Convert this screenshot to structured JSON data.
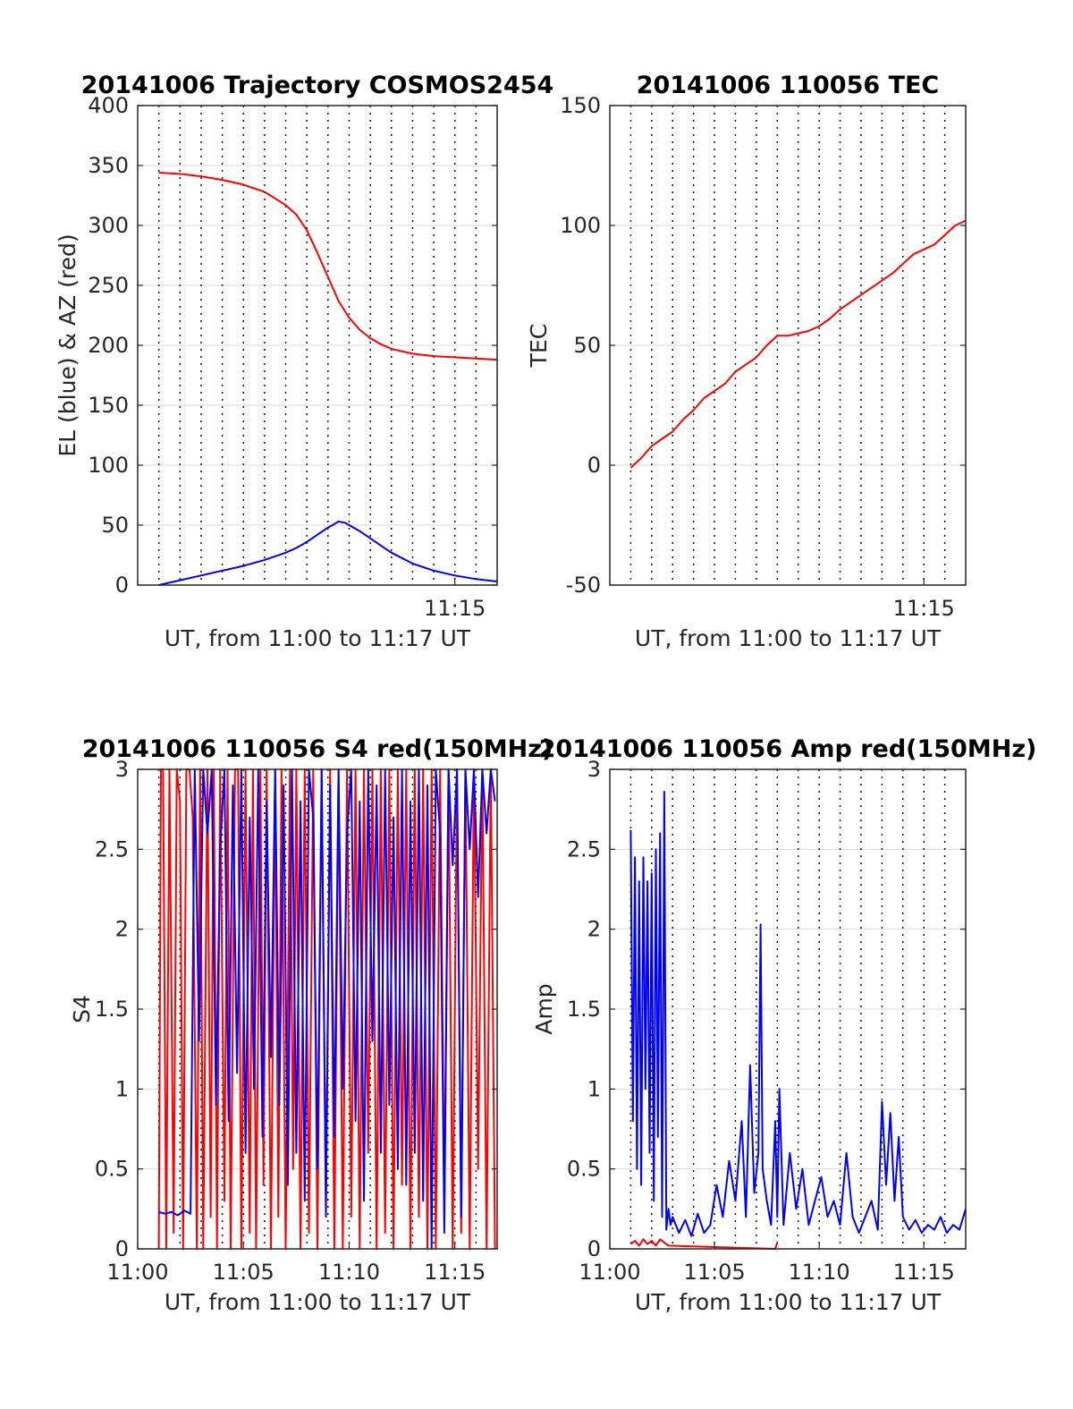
{
  "colors": {
    "red": "#ff0000",
    "blue": "#0000ff",
    "axis": "#262626",
    "grid": "#d9d9d9"
  },
  "chart_data": [
    {
      "type": "line",
      "title": "20141006 Trajectory COSMOS2454",
      "xlabel": "UT, from 11:00 to 11:17 UT",
      "ylabel": "EL (blue) & AZ (red)",
      "xlim": [
        0.0,
        17.0
      ],
      "ylim": [
        0,
        400
      ],
      "yticks": [
        0,
        50,
        100,
        150,
        200,
        250,
        300,
        350,
        400
      ],
      "ytick_labels": [
        "0",
        "50",
        "100",
        "150",
        "200",
        "250",
        "300",
        "350",
        "400"
      ],
      "xticks": [
        15
      ],
      "xtick_labels": [
        "11:15"
      ],
      "grid": "vertical dotted, horizontal solid",
      "series": [
        {
          "color": "red",
          "x": [
            1.0,
            2.0,
            3.0,
            4.0,
            5.0,
            6.0,
            7.0,
            7.5,
            8.0,
            8.5,
            9.0,
            9.5,
            10.0,
            10.5,
            11.0,
            11.5,
            12.0,
            13.0,
            14.0,
            15.0,
            16.0,
            17.0
          ],
          "values": [
            344,
            343,
            341,
            338,
            334,
            328,
            317,
            309,
            296,
            277,
            257,
            237,
            223,
            213,
            206,
            201,
            197,
            193,
            191,
            190,
            189,
            188
          ]
        },
        {
          "color": "blue",
          "x": [
            1.0,
            2.0,
            3.0,
            4.0,
            5.0,
            6.0,
            7.0,
            7.5,
            8.0,
            8.5,
            9.0,
            9.3,
            9.5,
            9.8,
            10.0,
            10.5,
            11.0,
            11.5,
            12.0,
            13.0,
            14.0,
            15.0,
            16.0,
            17.0
          ],
          "values": [
            0,
            4,
            8,
            12,
            16,
            21,
            27,
            31,
            36,
            42,
            48,
            51,
            53,
            52,
            50,
            45,
            39,
            33,
            27,
            18,
            12,
            8,
            5,
            3
          ]
        }
      ]
    },
    {
      "type": "line",
      "title": "20141006 110056 TEC",
      "xlabel": "UT, from 11:00 to 11:17 UT",
      "ylabel": "TEC",
      "xlim": [
        0.0,
        17.0
      ],
      "ylim": [
        -50,
        150
      ],
      "yticks": [
        -50,
        0,
        50,
        100,
        150
      ],
      "ytick_labels": [
        "-50",
        "0",
        "50",
        "100",
        "150"
      ],
      "xticks": [
        15
      ],
      "xtick_labels": [
        "11:15"
      ],
      "grid": "vertical dotted, horizontal solid",
      "series": [
        {
          "color": "red",
          "x": [
            1.0,
            1.5,
            2.0,
            2.5,
            3.0,
            3.5,
            4.0,
            4.5,
            5.0,
            5.5,
            6.0,
            6.5,
            7.0,
            7.5,
            8.0,
            8.5,
            9.0,
            9.5,
            10.0,
            10.5,
            11.0,
            11.5,
            12.0,
            12.5,
            13.0,
            13.5,
            14.0,
            14.5,
            15.0,
            15.5,
            16.0,
            16.5,
            17.0
          ],
          "values": [
            -1,
            3,
            8,
            11,
            14,
            19,
            23,
            28,
            31,
            34,
            39,
            42,
            45,
            50,
            54,
            54,
            55,
            56,
            58,
            61,
            65,
            68,
            71,
            74,
            77,
            80,
            84,
            88,
            90,
            92,
            96,
            100,
            102
          ]
        }
      ]
    },
    {
      "type": "line",
      "title": "20141006 110056 S4 red(150MHz)",
      "xlabel": "UT, from 11:00 to 11:17 UT",
      "ylabel": "S4",
      "xlim": [
        0.0,
        17.0
      ],
      "ylim": [
        0,
        3
      ],
      "yticks": [
        0,
        0.5,
        1,
        1.5,
        2,
        2.5,
        3
      ],
      "ytick_labels": [
        "0",
        "0.5",
        "1",
        "1.5",
        "2",
        "2.5",
        "3"
      ],
      "xticks": [
        0,
        5,
        10,
        15
      ],
      "xtick_labels": [
        "11:00",
        "11:05",
        "11:10",
        "11:15"
      ],
      "grid": "vertical dotted, horizontal solid",
      "series": [
        {
          "color": "red",
          "x": [
            1.0,
            1.1,
            1.2,
            1.35,
            1.5,
            1.7,
            1.85,
            2.0,
            2.15,
            2.3,
            2.45,
            2.6,
            2.8,
            2.95,
            3.1,
            3.3,
            3.45,
            3.6,
            3.75,
            3.9,
            4.1,
            4.25,
            4.4,
            4.6,
            4.75,
            4.9,
            5.1,
            5.3,
            5.45,
            5.6,
            5.8,
            5.95,
            6.1,
            6.3,
            6.5,
            6.65,
            6.8,
            7.0,
            7.2,
            7.35,
            7.5,
            7.7,
            7.9,
            8.1,
            8.3,
            8.5,
            8.7,
            8.9,
            9.1,
            9.3,
            9.5,
            9.7,
            9.9,
            10.1,
            10.3,
            10.5,
            10.7,
            10.9,
            11.1,
            11.3,
            11.5,
            11.7,
            11.9,
            12.1,
            12.3,
            12.5,
            12.7,
            12.9,
            13.1,
            13.3,
            13.5,
            13.7,
            13.9,
            14.1,
            14.3,
            14.5,
            14.7,
            14.9,
            15.1,
            15.3,
            15.5,
            15.7,
            15.9,
            16.1,
            16.3,
            16.5,
            16.7,
            16.9
          ],
          "values": [
            0.0,
            3.0,
            3.0,
            0.0,
            3.0,
            0.1,
            3.0,
            2.8,
            0.0,
            3.0,
            3.0,
            2.7,
            0.0,
            3.0,
            0.0,
            3.0,
            0.2,
            3.0,
            0.0,
            3.0,
            0.3,
            3.0,
            0.0,
            3.0,
            3.0,
            0.0,
            3.0,
            0.1,
            3.0,
            0.0,
            3.0,
            0.4,
            3.0,
            0.0,
            3.0,
            0.2,
            3.0,
            0.0,
            3.0,
            0.5,
            3.0,
            0.0,
            3.0,
            0.1,
            3.0,
            0.0,
            3.0,
            0.3,
            3.0,
            0.0,
            3.0,
            0.0,
            3.0,
            0.2,
            3.0,
            0.0,
            3.0,
            0.6,
            3.0,
            0.0,
            3.0,
            0.1,
            3.0,
            0.0,
            3.0,
            0.4,
            3.0,
            0.0,
            3.0,
            0.2,
            3.0,
            0.0,
            3.0,
            0.0,
            3.0,
            0.3,
            3.0,
            0.0,
            3.0,
            0.1,
            3.0,
            0.0,
            3.0,
            0.5,
            3.0,
            0.0,
            3.0,
            0.0
          ]
        },
        {
          "color": "blue",
          "x": [
            1.0,
            1.3,
            1.6,
            1.9,
            2.2,
            2.5,
            2.7,
            2.9,
            3.1,
            3.3,
            3.5,
            3.7,
            3.9,
            4.1,
            4.3,
            4.5,
            4.7,
            4.9,
            5.1,
            5.3,
            5.5,
            5.7,
            5.9,
            6.1,
            6.3,
            6.5,
            6.7,
            6.9,
            7.1,
            7.3,
            7.5,
            7.7,
            7.9,
            8.1,
            8.3,
            8.5,
            8.7,
            8.9,
            9.1,
            9.3,
            9.5,
            9.7,
            9.9,
            10.1,
            10.3,
            10.5,
            10.7,
            10.9,
            11.1,
            11.3,
            11.5,
            11.7,
            11.9,
            12.1,
            12.3,
            12.5,
            12.7,
            12.9,
            13.1,
            13.3,
            13.5,
            13.7,
            13.9,
            14.1,
            14.3,
            14.5,
            14.7,
            14.9,
            15.1,
            15.3,
            15.5,
            15.7,
            15.9,
            16.1,
            16.3,
            16.5,
            16.7,
            16.9
          ],
          "values": [
            0.23,
            0.22,
            0.23,
            0.21,
            0.24,
            0.22,
            3.0,
            1.3,
            3.0,
            2.6,
            3.0,
            0.9,
            2.5,
            3.0,
            0.8,
            2.9,
            1.1,
            3.0,
            0.6,
            2.7,
            1.0,
            3.0,
            0.7,
            2.8,
            1.2,
            3.0,
            0.9,
            2.9,
            0.4,
            3.0,
            0.6,
            2.8,
            0.3,
            3.0,
            2.7,
            0.5,
            3.0,
            0.2,
            2.9,
            0.7,
            3.0,
            1.0,
            2.6,
            3.0,
            0.8,
            2.8,
            0.3,
            3.0,
            1.3,
            2.9,
            0.6,
            3.0,
            0.9,
            2.7,
            0.5,
            3.0,
            0.4,
            2.8,
            0.6,
            3.0,
            0.3,
            2.9,
            0.0,
            3.0,
            2.6,
            0.1,
            3.0,
            2.4,
            3.0,
            0.2,
            3.0,
            2.5,
            3.0,
            2.2,
            3.0,
            2.6,
            3.0,
            2.8
          ]
        }
      ]
    },
    {
      "type": "line",
      "title": "20141006 110056 Amp red(150MHz)",
      "xlabel": "UT, from 11:00 to 11:17 UT",
      "ylabel": "Amp",
      "xlim": [
        0.0,
        17.0
      ],
      "ylim": [
        0,
        3
      ],
      "yticks": [
        0,
        0.5,
        1,
        1.5,
        2,
        2.5,
        3
      ],
      "ytick_labels": [
        "0",
        "0.5",
        "1",
        "1.5",
        "2",
        "2.5",
        "3"
      ],
      "xticks": [
        0,
        5,
        10,
        15
      ],
      "xtick_labels": [
        "11:00",
        "11:05",
        "11:10",
        "11:15"
      ],
      "grid": "vertical dotted, horizontal solid",
      "series": [
        {
          "color": "red",
          "x": [
            1.0,
            1.2,
            1.4,
            1.6,
            1.8,
            2.0,
            2.2,
            2.4,
            2.6,
            2.8,
            7.9,
            8.0
          ],
          "values": [
            0.03,
            0.05,
            0.02,
            0.06,
            0.03,
            0.05,
            0.02,
            0.06,
            0.04,
            0.02,
            0.0,
            0.04
          ]
        },
        {
          "color": "blue",
          "x": [
            1.0,
            1.1,
            1.2,
            1.3,
            1.4,
            1.5,
            1.6,
            1.7,
            1.8,
            1.9,
            2.0,
            2.1,
            2.2,
            2.3,
            2.4,
            2.5,
            2.6,
            2.7,
            2.8,
            2.9,
            3.0,
            3.3,
            3.6,
            3.9,
            4.2,
            4.5,
            4.8,
            5.1,
            5.4,
            5.7,
            6.0,
            6.3,
            6.5,
            6.7,
            6.9,
            7.1,
            7.2,
            7.3,
            7.5,
            7.7,
            7.9,
            8.0,
            8.1,
            8.3,
            8.6,
            8.9,
            9.2,
            9.5,
            9.8,
            10.1,
            10.4,
            10.7,
            11.0,
            11.3,
            11.6,
            11.9,
            12.2,
            12.5,
            12.8,
            13.0,
            13.2,
            13.4,
            13.6,
            13.8,
            14.0,
            14.3,
            14.6,
            14.9,
            15.2,
            15.5,
            15.8,
            16.1,
            16.4,
            16.7,
            17.0
          ],
          "values": [
            2.62,
            0.8,
            2.45,
            0.5,
            2.3,
            0.4,
            2.45,
            1.0,
            2.3,
            0.6,
            2.35,
            0.3,
            2.5,
            0.7,
            2.6,
            0.2,
            2.86,
            0.12,
            0.25,
            0.15,
            0.2,
            0.1,
            0.18,
            0.08,
            0.22,
            0.1,
            0.15,
            0.4,
            0.2,
            0.55,
            0.3,
            0.8,
            0.2,
            1.15,
            0.35,
            0.6,
            2.03,
            0.5,
            0.3,
            0.15,
            0.8,
            0.2,
            1.0,
            0.15,
            0.6,
            0.25,
            0.5,
            0.15,
            0.3,
            0.45,
            0.2,
            0.3,
            0.15,
            0.6,
            0.2,
            0.1,
            0.2,
            0.3,
            0.12,
            0.92,
            0.4,
            0.85,
            0.3,
            0.7,
            0.2,
            0.12,
            0.18,
            0.1,
            0.15,
            0.12,
            0.2,
            0.1,
            0.15,
            0.12,
            0.25
          ]
        }
      ]
    }
  ]
}
